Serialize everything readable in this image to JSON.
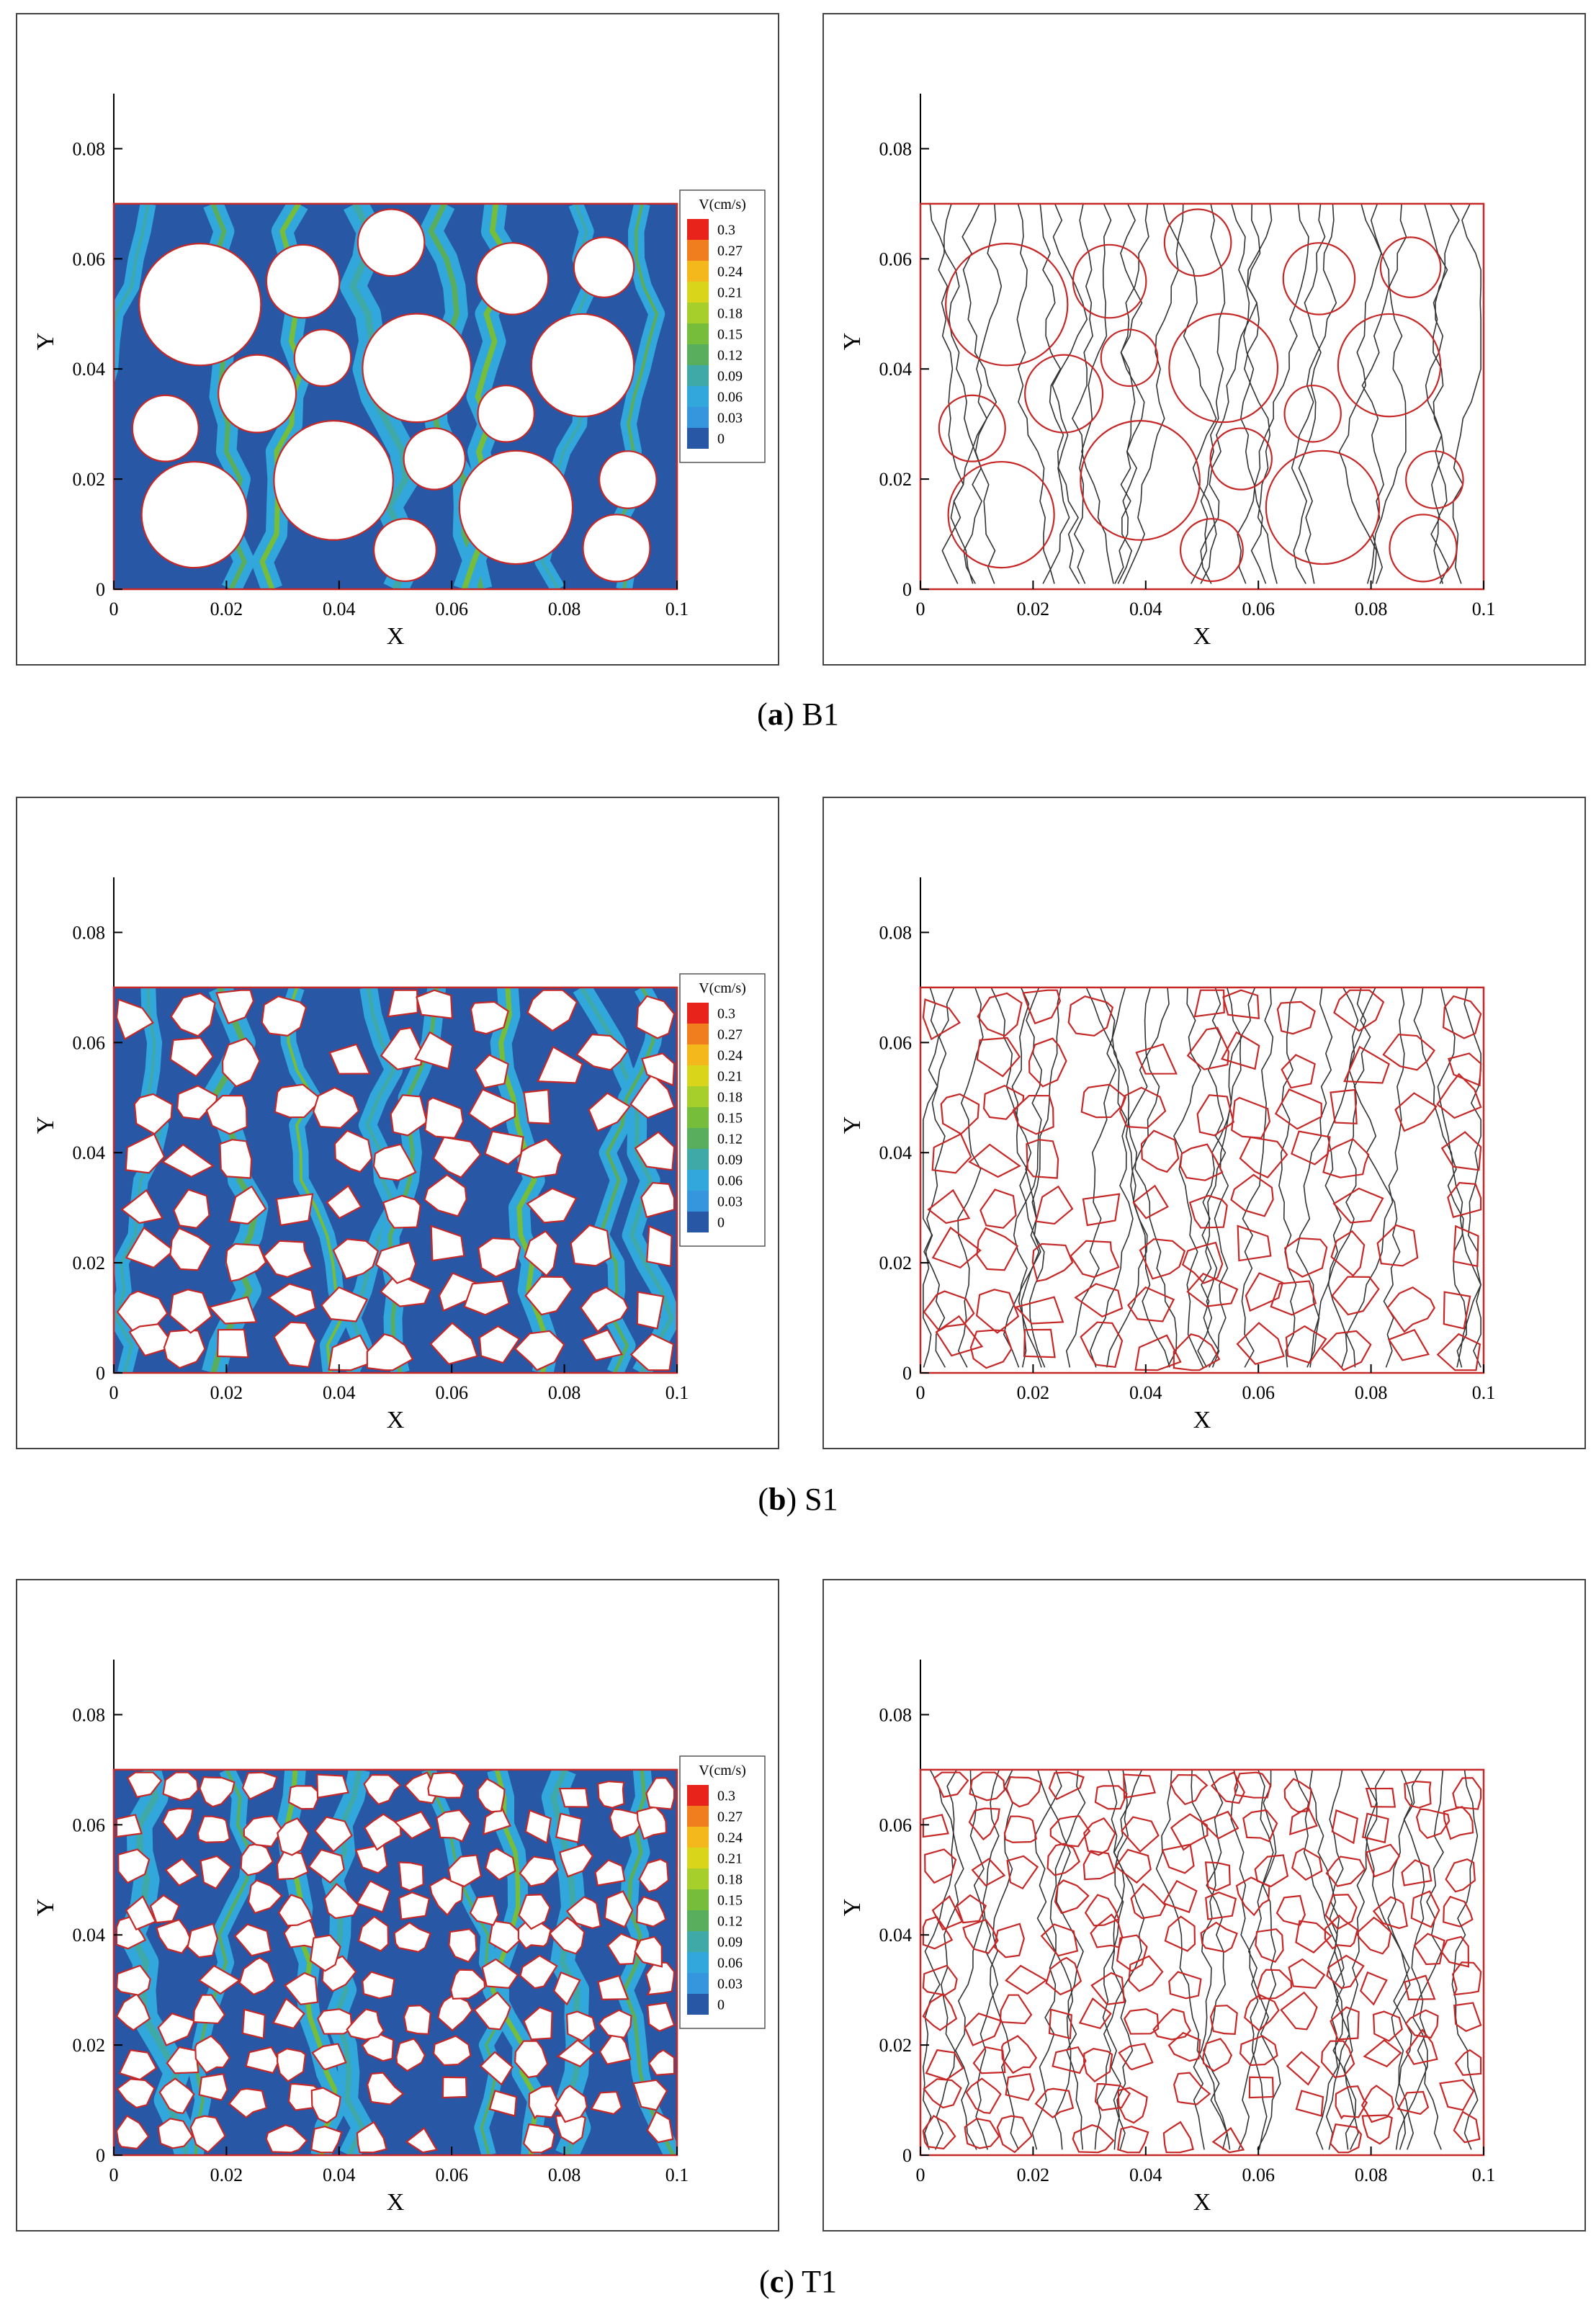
{
  "figure": {
    "rows": [
      {
        "caption_letter": "a",
        "caption_label": "B1"
      },
      {
        "caption_letter": "b",
        "caption_label": "S1"
      },
      {
        "caption_letter": "c",
        "caption_label": "T1"
      }
    ]
  },
  "chart_data": [
    {
      "panel": "a-left",
      "type": "heatmap",
      "xlabel": "X",
      "ylabel": "Y",
      "xlim": [
        0,
        0.1
      ],
      "ylim": [
        0,
        0.09
      ],
      "xticks": [
        "0",
        "0.02",
        "0.04",
        "0.06",
        "0.08",
        "0.1"
      ],
      "yticks": [
        "0",
        "0.02",
        "0.04",
        "0.06",
        "0.08"
      ],
      "domain_top": 0.07,
      "grain_shape": "circle",
      "legend": {
        "title": "V(cm/s)",
        "placement": "right",
        "levels": [
          "0.3",
          "0.27",
          "0.24",
          "0.21",
          "0.18",
          "0.15",
          "0.12",
          "0.09",
          "0.06",
          "0.03",
          "0"
        ],
        "colors": [
          "#e8231c",
          "#f07d1e",
          "#f4b81c",
          "#d8d51a",
          "#a6cf2c",
          "#76bd3c",
          "#59ae5d",
          "#3fa9a7",
          "#32a7dc",
          "#3596dd",
          "#2757a5"
        ]
      }
    },
    {
      "panel": "a-right",
      "type": "line",
      "xlabel": "X",
      "ylabel": "Y",
      "xlim": [
        0,
        0.1
      ],
      "ylim": [
        0,
        0.09
      ],
      "xticks": [
        "0",
        "0.02",
        "0.04",
        "0.06",
        "0.08",
        "0.1"
      ],
      "yticks": [
        "0",
        "0.02",
        "0.04",
        "0.06",
        "0.08"
      ],
      "domain_top": 0.07,
      "grain_shape": "circle",
      "content": "streamlines"
    },
    {
      "panel": "b-left",
      "type": "heatmap",
      "xlabel": "X",
      "ylabel": "Y",
      "xlim": [
        0,
        0.1
      ],
      "ylim": [
        0,
        0.09
      ],
      "xticks": [
        "0",
        "0.02",
        "0.04",
        "0.06",
        "0.08",
        "0.1"
      ],
      "yticks": [
        "0",
        "0.02",
        "0.04",
        "0.06",
        "0.08"
      ],
      "domain_top": 0.07,
      "grain_shape": "polygon",
      "legend": {
        "title": "V(cm/s)",
        "placement": "right",
        "levels": [
          "0.3",
          "0.27",
          "0.24",
          "0.21",
          "0.18",
          "0.15",
          "0.12",
          "0.09",
          "0.06",
          "0.03",
          "0"
        ],
        "colors": [
          "#e8231c",
          "#f07d1e",
          "#f4b81c",
          "#d8d51a",
          "#a6cf2c",
          "#76bd3c",
          "#59ae5d",
          "#3fa9a7",
          "#32a7dc",
          "#3596dd",
          "#2757a5"
        ]
      }
    },
    {
      "panel": "b-right",
      "type": "line",
      "xlabel": "X",
      "ylabel": "Y",
      "xlim": [
        0,
        0.1
      ],
      "ylim": [
        0,
        0.09
      ],
      "xticks": [
        "0",
        "0.02",
        "0.04",
        "0.06",
        "0.08",
        "0.1"
      ],
      "yticks": [
        "0",
        "0.02",
        "0.04",
        "0.06",
        "0.08"
      ],
      "domain_top": 0.07,
      "grain_shape": "polygon",
      "content": "streamlines"
    },
    {
      "panel": "c-left",
      "type": "heatmap",
      "xlabel": "X",
      "ylabel": "Y",
      "xlim": [
        0,
        0.1
      ],
      "ylim": [
        0,
        0.09
      ],
      "xticks": [
        "0",
        "0.02",
        "0.04",
        "0.06",
        "0.08",
        "0.1"
      ],
      "yticks": [
        "0",
        "0.02",
        "0.04",
        "0.06",
        "0.08"
      ],
      "domain_top": 0.07,
      "grain_shape": "polygon",
      "legend": {
        "title": "V(cm/s)",
        "placement": "right",
        "levels": [
          "0.3",
          "0.27",
          "0.24",
          "0.21",
          "0.18",
          "0.15",
          "0.12",
          "0.09",
          "0.06",
          "0.03",
          "0"
        ],
        "colors": [
          "#e8231c",
          "#f07d1e",
          "#f4b81c",
          "#d8d51a",
          "#a6cf2c",
          "#76bd3c",
          "#59ae5d",
          "#3fa9a7",
          "#32a7dc",
          "#3596dd",
          "#2757a5"
        ]
      }
    },
    {
      "panel": "c-right",
      "type": "line",
      "xlabel": "X",
      "ylabel": "Y",
      "xlim": [
        0,
        0.1
      ],
      "ylim": [
        0,
        0.09
      ],
      "xticks": [
        "0",
        "0.02",
        "0.04",
        "0.06",
        "0.08",
        "0.1"
      ],
      "yticks": [
        "0",
        "0.02",
        "0.04",
        "0.06",
        "0.08"
      ],
      "domain_top": 0.07,
      "grain_shape": "polygon",
      "content": "streamlines"
    }
  ],
  "colors": {
    "grain_edge": "#c62828",
    "fluid_bg": "#2757a5",
    "streamline": "#333333"
  }
}
